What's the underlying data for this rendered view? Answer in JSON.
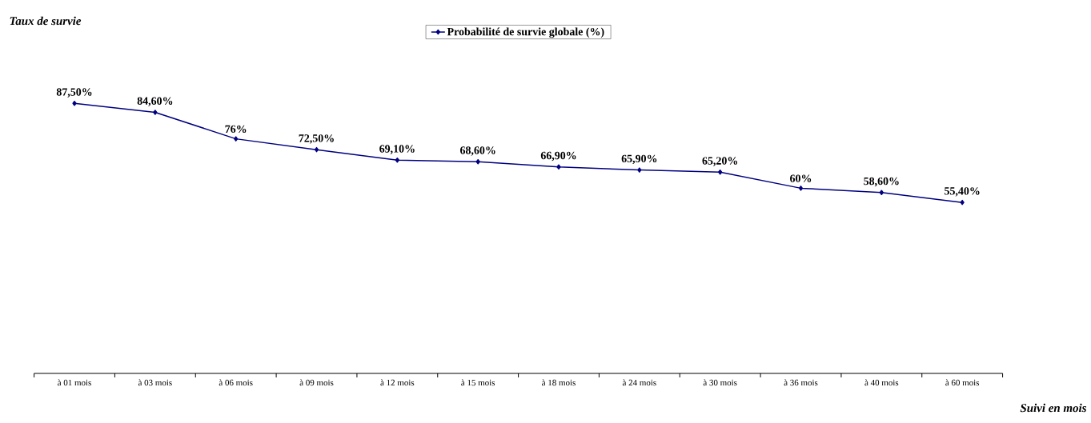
{
  "chart_data": {
    "type": "line",
    "title": "Taux de survie",
    "xlabel": "Suivi en mois",
    "categories": [
      "à 01 mois",
      "à 03 mois",
      "à 06 mois",
      "à 09 mois",
      "à 12 mois",
      "à 15 mois",
      "à 18 mois",
      "à 24 mois",
      "à 30 mois",
      "à 36 mois",
      "à 40 mois",
      "à 60 mois"
    ],
    "series": [
      {
        "name": "**Probabilité de survie globale (%)**",
        "color": "#000080",
        "values": [
          87.5,
          84.6,
          76,
          72.5,
          69.1,
          68.6,
          66.9,
          65.9,
          65.2,
          60,
          58.6,
          55.4
        ],
        "value_labels": [
          "87,50%",
          "84,60%",
          "76%",
          "72,50%",
          "69,10%",
          "68,60%",
          "66,90%",
          "65,90%",
          "65,20%",
          "60%",
          "58,60%",
          "55,40%"
        ]
      }
    ],
    "tick_labels": "x",
    "grid": false,
    "legend": "top",
    "marker": "diamond",
    "line_style": "solid"
  }
}
